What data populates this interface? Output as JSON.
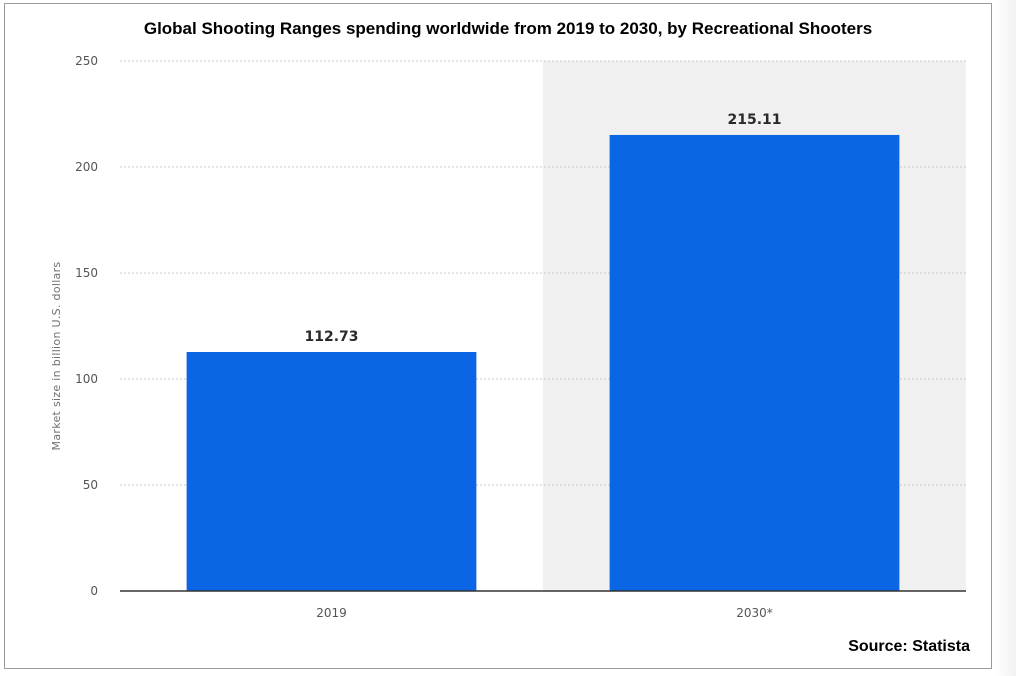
{
  "chart_data": {
    "type": "bar",
    "title": "Global Shooting Ranges spending worldwide from 2019 to 2030, by Recreational Shooters",
    "ylabel": "Market size in billion U.S. dollars",
    "xlabel": "",
    "categories": [
      "2019",
      "2030*"
    ],
    "values": [
      112.73,
      215.11
    ],
    "data_labels": [
      "112.73",
      "215.11"
    ],
    "yticks": [
      "0",
      "50",
      "100",
      "150",
      "200",
      "250"
    ],
    "ylim": [
      0,
      250
    ],
    "grid": true,
    "forecast_shaded": "2030*",
    "bar_color": "#0a66e4",
    "forecast_bg_color": "#f0f0f0"
  },
  "source": "Source: Statista"
}
